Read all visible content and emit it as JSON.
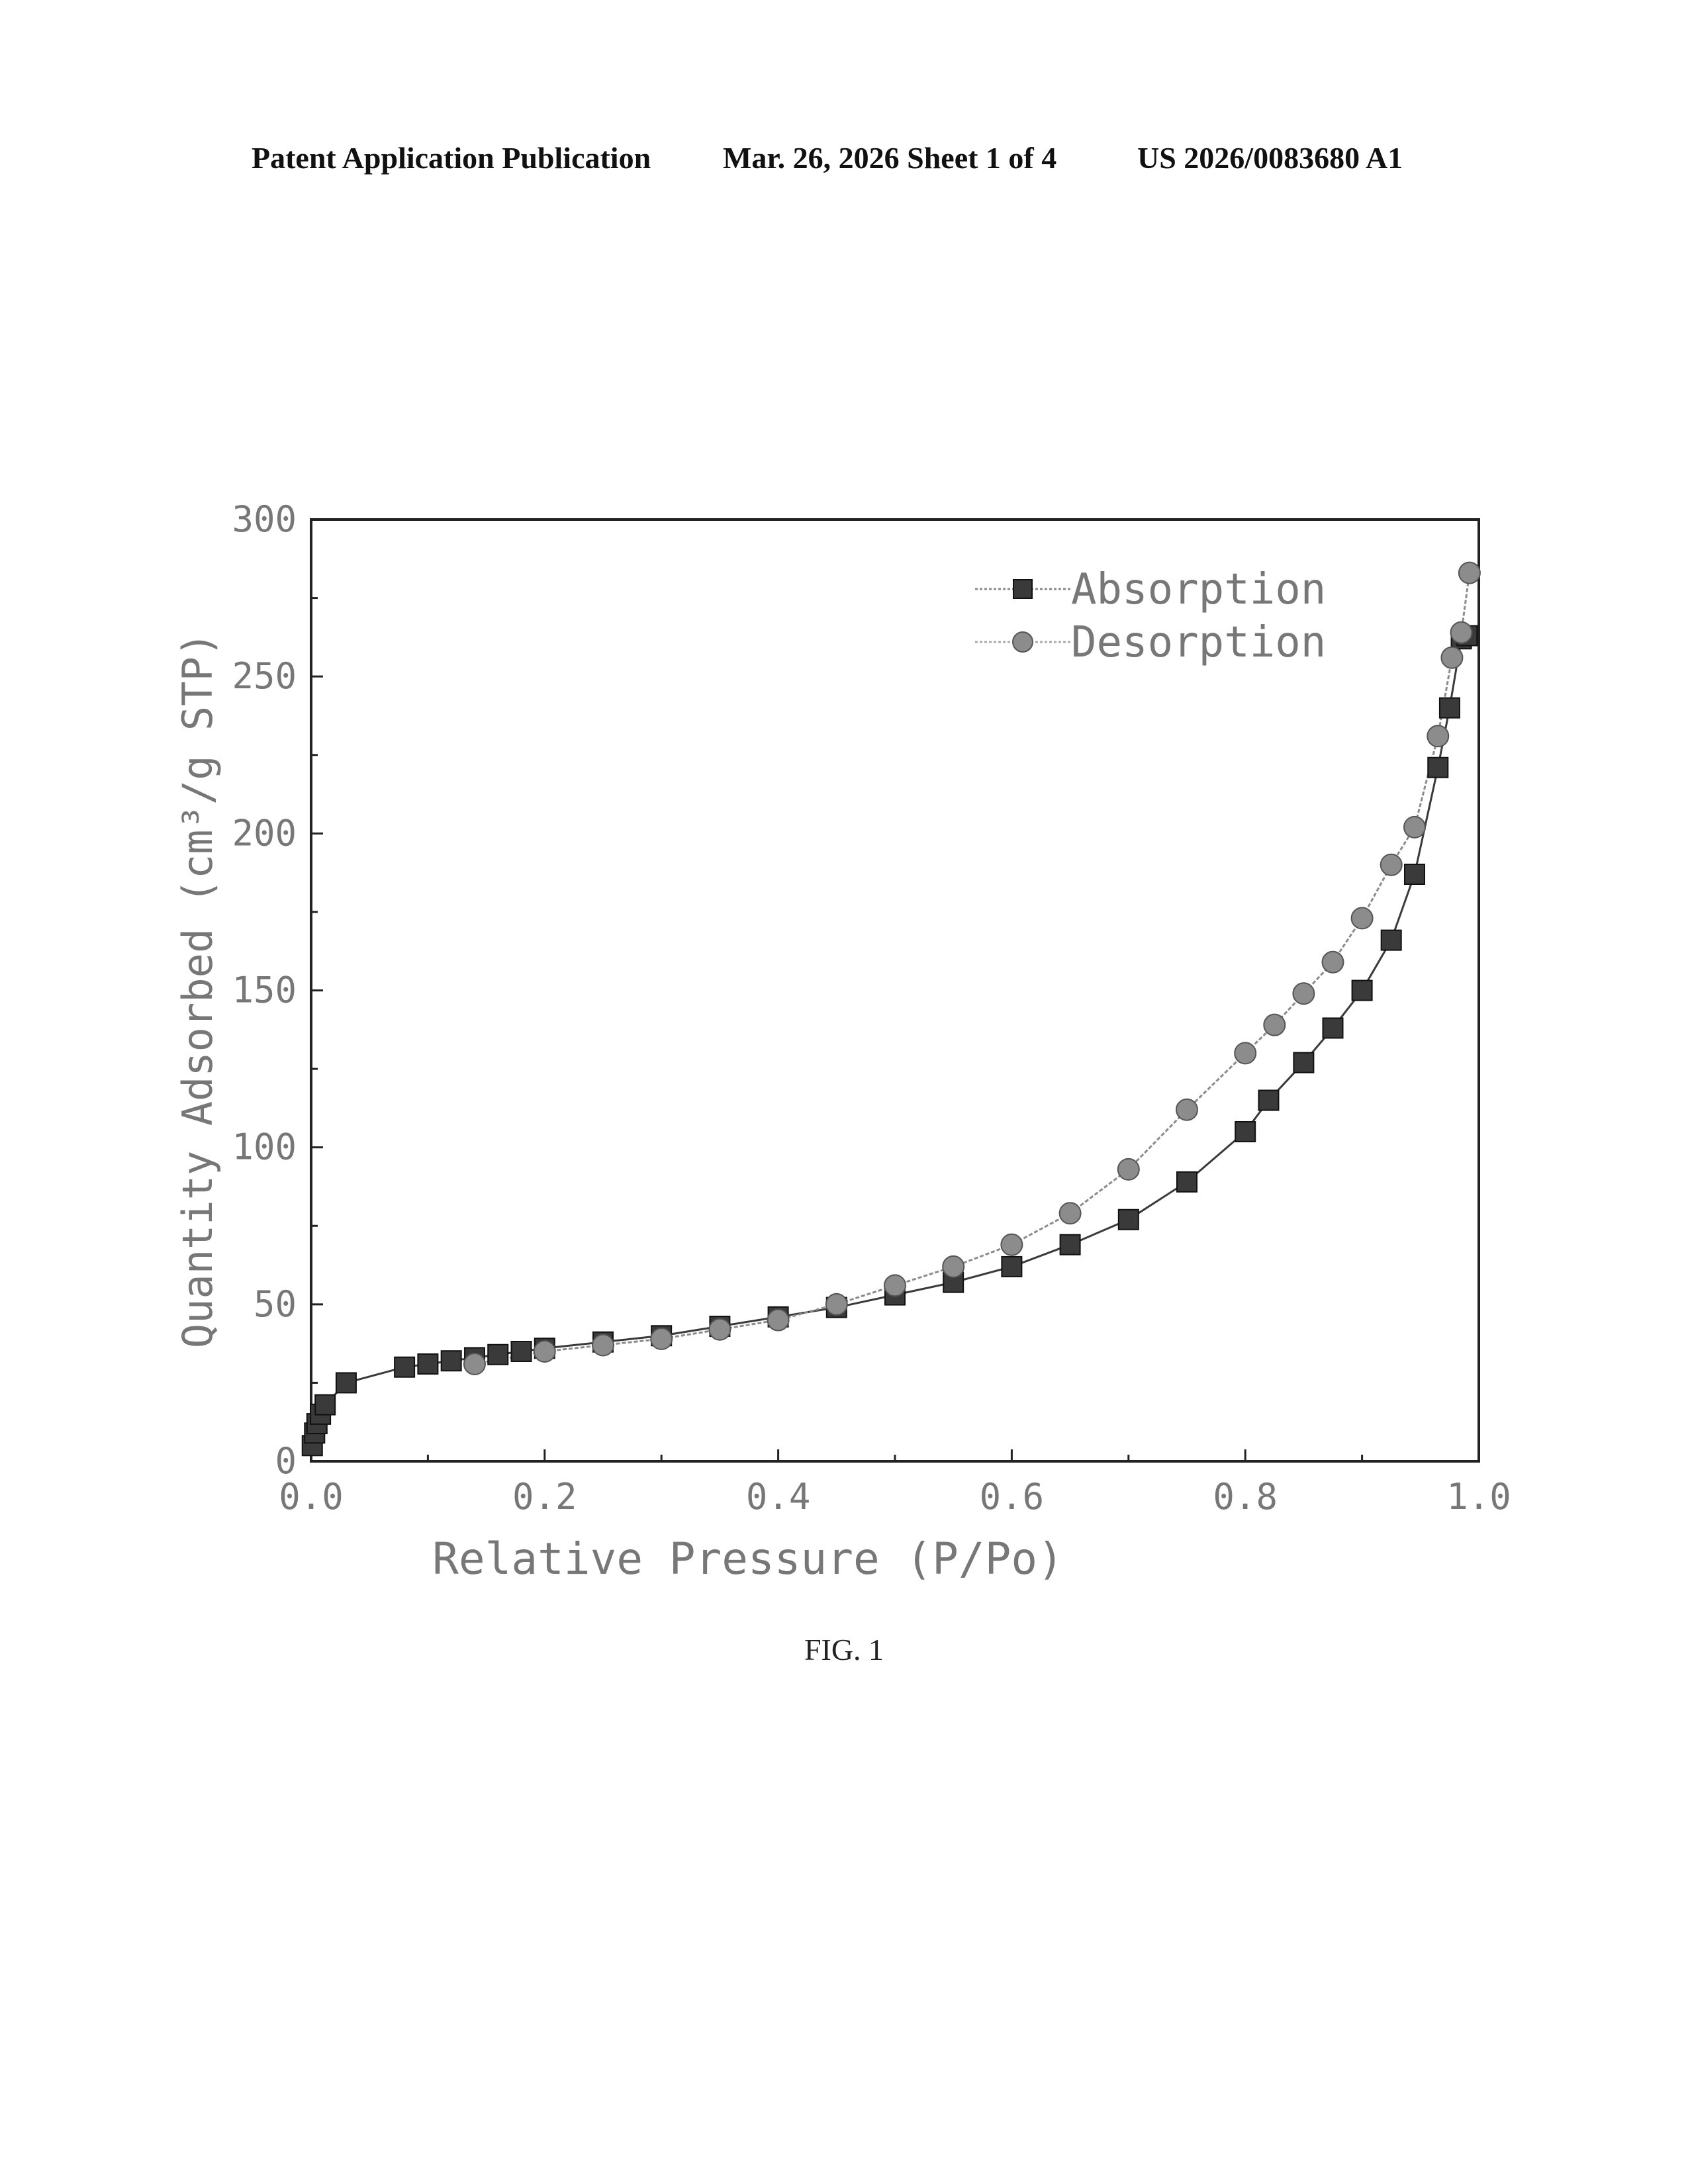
{
  "header": {
    "left": "Patent Application Publication",
    "middle": "Mar. 26, 2026  Sheet 1 of 4",
    "right": "US 2026/0083680 A1"
  },
  "caption": "FIG. 1",
  "colors": {
    "absorption": "#3a3a3a",
    "desorption": "#8c8c8c",
    "axes": "#222222",
    "labels": "#777777"
  },
  "chart_data": {
    "type": "scatter",
    "xlabel": "Relative Pressure (P/Po)",
    "ylabel": "Quantity Adsorbed (cm³/g STP)",
    "xlim": [
      0.0,
      1.0
    ],
    "ylim": [
      0,
      300
    ],
    "xticks": [
      "0.0",
      "0.2",
      "0.4",
      "0.6",
      "0.8",
      "1.0"
    ],
    "yticks": [
      "0",
      "50",
      "100",
      "150",
      "200",
      "250",
      "300"
    ],
    "grid": false,
    "legend_position": "top-right",
    "series": [
      {
        "name": "Absorption",
        "marker": "square",
        "x": [
          0.001,
          0.003,
          0.005,
          0.008,
          0.012,
          0.03,
          0.08,
          0.1,
          0.12,
          0.14,
          0.16,
          0.18,
          0.2,
          0.25,
          0.3,
          0.35,
          0.4,
          0.45,
          0.5,
          0.55,
          0.6,
          0.65,
          0.7,
          0.75,
          0.8,
          0.82,
          0.85,
          0.875,
          0.9,
          0.925,
          0.945,
          0.965,
          0.975,
          0.985,
          0.99
        ],
        "y": [
          5,
          9,
          12,
          15,
          18,
          25,
          30,
          31,
          32,
          33,
          34,
          35,
          36,
          38,
          40,
          43,
          46,
          49,
          53,
          57,
          62,
          69,
          77,
          89,
          105,
          115,
          127,
          138,
          150,
          166,
          187,
          221,
          240,
          262,
          263
        ]
      },
      {
        "name": "Desorption",
        "marker": "circle",
        "x": [
          0.14,
          0.2,
          0.25,
          0.3,
          0.35,
          0.4,
          0.45,
          0.5,
          0.55,
          0.6,
          0.65,
          0.7,
          0.75,
          0.8,
          0.825,
          0.85,
          0.875,
          0.9,
          0.925,
          0.945,
          0.965,
          0.977,
          0.985,
          0.992
        ],
        "y": [
          31,
          35,
          37,
          39,
          42,
          45,
          50,
          56,
          62,
          69,
          79,
          93,
          112,
          130,
          139,
          149,
          159,
          173,
          190,
          202,
          231,
          256,
          264,
          283
        ]
      }
    ]
  }
}
